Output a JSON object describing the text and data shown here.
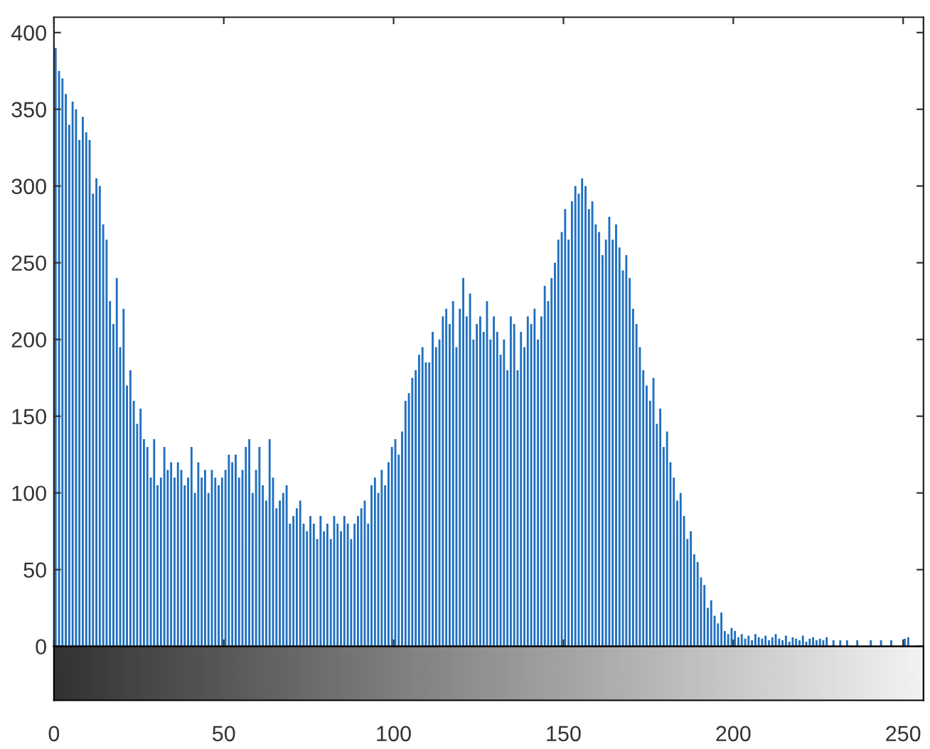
{
  "chart_data": {
    "type": "histogram",
    "bins": [
      0,
      1,
      2,
      3,
      4,
      5,
      6,
      7,
      8,
      9,
      10,
      11,
      12,
      13,
      14,
      15,
      16,
      17,
      18,
      19,
      20,
      21,
      22,
      23,
      24,
      25,
      26,
      27,
      28,
      29,
      30,
      31,
      32,
      33,
      34,
      35,
      36,
      37,
      38,
      39,
      40,
      41,
      42,
      43,
      44,
      45,
      46,
      47,
      48,
      49,
      50,
      51,
      52,
      53,
      54,
      55,
      56,
      57,
      58,
      59,
      60,
      61,
      62,
      63,
      64,
      65,
      66,
      67,
      68,
      69,
      70,
      71,
      72,
      73,
      74,
      75,
      76,
      77,
      78,
      79,
      80,
      81,
      82,
      83,
      84,
      85,
      86,
      87,
      88,
      89,
      90,
      91,
      92,
      93,
      94,
      95,
      96,
      97,
      98,
      99,
      100,
      101,
      102,
      103,
      104,
      105,
      106,
      107,
      108,
      109,
      110,
      111,
      112,
      113,
      114,
      115,
      116,
      117,
      118,
      119,
      120,
      121,
      122,
      123,
      124,
      125,
      126,
      127,
      128,
      129,
      130,
      131,
      132,
      133,
      134,
      135,
      136,
      137,
      138,
      139,
      140,
      141,
      142,
      143,
      144,
      145,
      146,
      147,
      148,
      149,
      150,
      151,
      152,
      153,
      154,
      155,
      156,
      157,
      158,
      159,
      160,
      161,
      162,
      163,
      164,
      165,
      166,
      167,
      168,
      169,
      170,
      171,
      172,
      173,
      174,
      175,
      176,
      177,
      178,
      179,
      180,
      181,
      182,
      183,
      184,
      185,
      186,
      187,
      188,
      189,
      190,
      191,
      192,
      193,
      194,
      195,
      196,
      197,
      198,
      199,
      200,
      201,
      202,
      203,
      204,
      205,
      206,
      207,
      208,
      209,
      210,
      211,
      212,
      213,
      214,
      215,
      216,
      217,
      218,
      219,
      220,
      221,
      222,
      223,
      224,
      225,
      226,
      227,
      228,
      229,
      230,
      231,
      232,
      233,
      234,
      235,
      236,
      237,
      238,
      239,
      240,
      241,
      242,
      243,
      244,
      245,
      246,
      247,
      248,
      249,
      250,
      251,
      252
    ],
    "values": [
      390,
      375,
      370,
      360,
      340,
      355,
      350,
      330,
      345,
      335,
      330,
      295,
      305,
      300,
      275,
      265,
      225,
      210,
      240,
      195,
      220,
      170,
      180,
      160,
      145,
      155,
      135,
      130,
      110,
      135,
      105,
      110,
      130,
      115,
      120,
      110,
      120,
      115,
      105,
      110,
      130,
      100,
      120,
      110,
      115,
      100,
      115,
      110,
      105,
      110,
      115,
      125,
      120,
      125,
      110,
      115,
      130,
      135,
      100,
      115,
      130,
      105,
      95,
      135,
      110,
      90,
      95,
      100,
      105,
      80,
      85,
      90,
      95,
      80,
      75,
      85,
      80,
      70,
      85,
      75,
      80,
      70,
      85,
      80,
      75,
      85,
      80,
      70,
      80,
      85,
      90,
      95,
      80,
      105,
      110,
      100,
      115,
      105,
      120,
      130,
      135,
      125,
      140,
      160,
      165,
      175,
      180,
      190,
      195,
      185,
      185,
      205,
      195,
      200,
      215,
      220,
      210,
      225,
      195,
      220,
      240,
      215,
      230,
      200,
      210,
      215,
      205,
      225,
      200,
      215,
      205,
      190,
      200,
      180,
      215,
      210,
      180,
      205,
      195,
      215,
      210,
      220,
      200,
      215,
      235,
      225,
      240,
      250,
      265,
      270,
      285,
      265,
      290,
      300,
      295,
      305,
      300,
      285,
      290,
      275,
      270,
      255,
      265,
      280,
      265,
      275,
      260,
      245,
      255,
      240,
      220,
      210,
      195,
      180,
      170,
      160,
      175,
      145,
      155,
      130,
      140,
      120,
      110,
      95,
      100,
      85,
      70,
      75,
      60,
      55,
      45,
      40,
      25,
      30,
      20,
      15,
      22,
      10,
      8,
      12,
      10,
      6,
      8,
      5,
      7,
      4,
      8,
      6,
      5,
      7,
      4,
      6,
      8,
      5,
      4,
      7,
      3,
      6,
      5,
      4,
      7,
      3,
      5,
      6,
      4,
      5,
      4,
      6,
      0,
      4,
      0,
      4,
      0,
      4,
      0,
      0,
      4,
      0,
      0,
      0,
      4,
      0,
      0,
      4,
      0,
      0,
      4,
      0,
      0,
      0,
      5,
      6
    ],
    "color": "#1f6fc0",
    "xlim": [
      0,
      256
    ],
    "xticks": [
      0,
      50,
      100,
      150,
      200,
      250
    ],
    "ylim": [
      0,
      410
    ],
    "yticks": [
      0,
      50,
      100,
      150,
      200,
      250,
      300,
      350,
      400
    ],
    "grid": false
  }
}
